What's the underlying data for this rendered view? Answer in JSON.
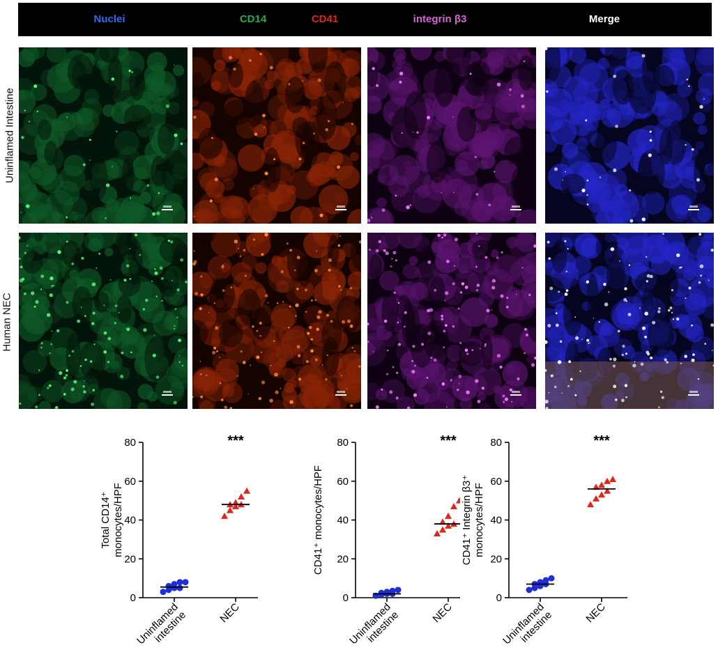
{
  "figure": {
    "channels": [
      {
        "label": "Nuclei",
        "color": "#2f6df0"
      },
      {
        "label": "CD14",
        "color": "#1fae4c"
      },
      {
        "label": "CD41",
        "color": "#e0251b"
      },
      {
        "label": "integrin β3",
        "color": "#d664d6"
      },
      {
        "label": "Merge",
        "color": "#ffffff"
      }
    ],
    "rows": [
      {
        "label": "Uninflamed Intestine"
      },
      {
        "label": "Human NEC"
      }
    ]
  },
  "chart_data": [
    {
      "type": "scatter",
      "ylabel_lines": [
        "Total CD14⁺",
        "monocytes/HPF"
      ],
      "categories": [
        "Uninflamed intestine",
        "NEC"
      ],
      "ylim": [
        0,
        80
      ],
      "yticks": [
        0,
        20,
        40,
        60,
        80
      ],
      "significance": "***",
      "series": [
        {
          "category": "Uninflamed intestine",
          "marker": "circle",
          "color": "#1f2fd6",
          "values": [
            3,
            4,
            5,
            5,
            6,
            7,
            8,
            8
          ],
          "median": 5.5
        },
        {
          "category": "NEC",
          "marker": "triangle",
          "color": "#e0251b",
          "values": [
            42,
            45,
            47,
            48,
            48,
            49,
            52,
            55
          ],
          "median": 48
        }
      ]
    },
    {
      "type": "scatter",
      "ylabel_lines": [
        "CD41⁺ monocytes/HPF"
      ],
      "categories": [
        "Uninflamed intestine",
        "NEC"
      ],
      "ylim": [
        0,
        80
      ],
      "yticks": [
        0,
        20,
        40,
        60,
        80
      ],
      "significance": "***",
      "series": [
        {
          "category": "Uninflamed intestine",
          "marker": "circle",
          "color": "#1f2fd6",
          "values": [
            1,
            1.5,
            2,
            2,
            2.5,
            3,
            3.5,
            4
          ],
          "median": 2
        },
        {
          "category": "NEC",
          "marker": "triangle",
          "color": "#e0251b",
          "values": [
            33,
            35,
            37,
            38,
            39,
            42,
            47,
            50
          ],
          "median": 38
        }
      ]
    },
    {
      "type": "scatter",
      "ylabel_lines": [
        "CD41⁺ Integrin β3⁺",
        "monocytes/HPF"
      ],
      "categories": [
        "Uninflamed intestine",
        "NEC"
      ],
      "ylim": [
        0,
        80
      ],
      "yticks": [
        0,
        20,
        40,
        60,
        80
      ],
      "significance": "***",
      "series": [
        {
          "category": "Uninflamed intestine",
          "marker": "circle",
          "color": "#1f2fd6",
          "values": [
            4,
            5,
            6,
            7,
            7,
            8,
            9,
            10
          ],
          "median": 7
        },
        {
          "category": "NEC",
          "marker": "triangle",
          "color": "#e0251b",
          "values": [
            48,
            51,
            53,
            55,
            57,
            58,
            60,
            61
          ],
          "median": 56
        }
      ]
    }
  ]
}
